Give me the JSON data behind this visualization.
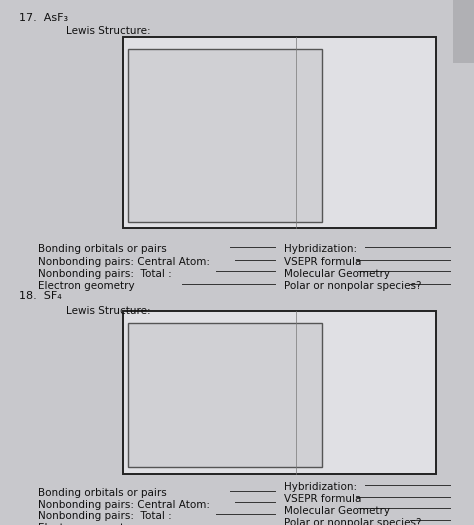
{
  "bg_color": "#c8c8cc",
  "page_color": "#d4d4d8",
  "box_fill": "#e0e0e4",
  "inner_box_fill": "#d0d0d4",
  "title17": "17.  AsF₃",
  "title18": "18.  SF₄",
  "lewis_label": "Lewis Structure:",
  "labels_left": [
    "Bonding orbitals or pairs",
    "Nonbonding pairs: Central Atom:",
    "Nonbonding pairs:  Total :",
    "Electron geometry"
  ],
  "labels_right": [
    "Hybridization:",
    "VSEPR formula",
    "Molecular Geometry",
    "Polar or nonpolar species?"
  ],
  "font_size": 7.5,
  "text_color": "#111111",
  "line_color": "#333333",
  "box_edge_color": "#222222"
}
